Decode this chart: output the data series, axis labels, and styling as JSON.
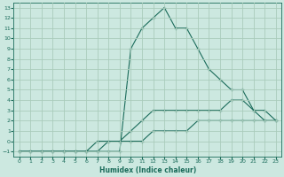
{
  "title": "",
  "xlabel": "Humidex (Indice chaleur)",
  "ylabel": "",
  "bg_color": "#cce8e0",
  "line_color": "#1a6b5a",
  "grid_color": "#aaccbb",
  "xlim": [
    -0.5,
    23.5
  ],
  "ylim": [
    -1.5,
    13.5
  ],
  "xticks": [
    0,
    1,
    2,
    3,
    4,
    5,
    6,
    7,
    8,
    9,
    10,
    11,
    12,
    13,
    14,
    15,
    16,
    17,
    18,
    19,
    20,
    21,
    22,
    23
  ],
  "yticks": [
    -1,
    0,
    1,
    2,
    3,
    4,
    5,
    6,
    7,
    8,
    9,
    10,
    11,
    12,
    13
  ],
  "curve1_x": [
    0,
    1,
    2,
    3,
    4,
    5,
    6,
    7,
    8,
    9,
    10,
    11,
    12,
    13,
    14,
    15,
    16,
    17,
    18,
    19,
    20,
    21,
    22,
    23
  ],
  "curve1_y": [
    -1,
    -1,
    -1,
    -1,
    -1,
    -1,
    -1,
    -1,
    -1,
    -1,
    9,
    11,
    12,
    13,
    11,
    11,
    9,
    7,
    6,
    5,
    5,
    3,
    2,
    2
  ],
  "curve2_x": [
    0,
    1,
    2,
    3,
    4,
    5,
    6,
    7,
    8,
    9,
    10,
    11,
    12,
    13,
    14,
    15,
    16,
    17,
    18,
    19,
    20,
    21,
    22,
    23
  ],
  "curve2_y": [
    -1,
    -1,
    -1,
    -1,
    -1,
    -1,
    -1,
    -1,
    0,
    0,
    1,
    2,
    3,
    3,
    3,
    3,
    3,
    3,
    3,
    4,
    4,
    3,
    3,
    2
  ],
  "curve3_x": [
    0,
    1,
    2,
    3,
    4,
    5,
    6,
    7,
    8,
    9,
    10,
    11,
    12,
    13,
    14,
    15,
    16,
    17,
    18,
    19,
    20,
    21,
    22,
    23
  ],
  "curve3_y": [
    -1,
    -1,
    -1,
    -1,
    -1,
    -1,
    -1,
    0,
    0,
    0,
    0,
    0,
    1,
    1,
    1,
    1,
    2,
    2,
    2,
    2,
    2,
    2,
    2,
    2
  ]
}
